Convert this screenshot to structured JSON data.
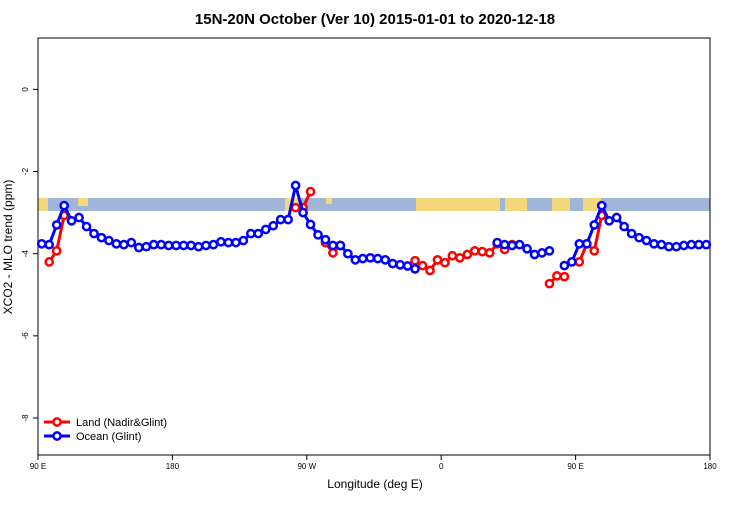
{
  "chart_data": {
    "type": "line",
    "title": "15N-20N October (Ver 10)   2015-01-01 to 2020-12-18",
    "xlabel": "Longitude (deg E)",
    "ylabel": "XCO2 - MLO trend (ppm)",
    "x": [
      92.5,
      97.5,
      102.5,
      107.5,
      112.5,
      117.5,
      122.5,
      127.5,
      132.5,
      137.5,
      142.5,
      147.5,
      152.5,
      157.5,
      162.5,
      167.5,
      172.5,
      177.5,
      182.5,
      187.5,
      192.5,
      197.5,
      202.5,
      207.5,
      212.5,
      217.5,
      222.5,
      227.5,
      232.5,
      237.5,
      242.5,
      247.5,
      252.5,
      257.5,
      262.5,
      267.5,
      272.5,
      277.5,
      282.5,
      287.5,
      292.5,
      297.5,
      302.5,
      307.5,
      312.5,
      317.5,
      322.5,
      327.5,
      332.5,
      337.5,
      342.5,
      347.5,
      352.5,
      357.5,
      362.5,
      367.5,
      372.5,
      377.5,
      382.5,
      387.5,
      392.5,
      397.5,
      402.5,
      407.5,
      412.5,
      417.5,
      422.5,
      427.5,
      432.5,
      437.5,
      442.5,
      447.5,
      452.5,
      457.5,
      462.5,
      467.5,
      472.5,
      477.5,
      482.5,
      487.5,
      492.5,
      497.5,
      502.5,
      507.5,
      512.5,
      517.5,
      522.5,
      527.5,
      532.5,
      537.5
    ],
    "series": [
      {
        "name": "Land (Nadir&Glint)",
        "color": "#ff0000",
        "values": [
          null,
          -4.2,
          -3.93,
          -3.07,
          null,
          null,
          null,
          null,
          null,
          null,
          null,
          null,
          null,
          null,
          null,
          null,
          null,
          null,
          null,
          null,
          null,
          null,
          null,
          null,
          null,
          null,
          null,
          null,
          null,
          null,
          null,
          null,
          null,
          null,
          -2.88,
          -2.88,
          -2.49,
          null,
          -3.73,
          -3.98,
          -3.8,
          null,
          null,
          null,
          null,
          null,
          null,
          null,
          null,
          null,
          -4.17,
          -4.29,
          -4.41,
          -4.15,
          -4.22,
          -4.05,
          -4.1,
          -4.02,
          -3.93,
          -3.95,
          -3.98,
          -3.76,
          -3.9,
          -3.78,
          null,
          null,
          null,
          null,
          -4.73,
          -4.54,
          -4.56,
          null,
          -4.2,
          -3.76,
          -3.93,
          -3.07,
          null,
          null,
          null,
          null,
          null,
          null,
          null,
          null,
          null,
          null,
          null,
          null,
          null,
          null
        ]
      },
      {
        "name": "Ocean (Glint)",
        "color": "#0000ff",
        "values": [
          -3.76,
          -3.78,
          -3.3,
          -2.83,
          -3.2,
          -3.12,
          -3.34,
          -3.51,
          -3.61,
          -3.68,
          -3.76,
          -3.78,
          -3.73,
          -3.85,
          -3.83,
          -3.78,
          -3.78,
          -3.8,
          -3.8,
          -3.8,
          -3.8,
          -3.83,
          -3.8,
          -3.78,
          -3.71,
          -3.73,
          -3.73,
          -3.68,
          -3.51,
          -3.51,
          -3.41,
          -3.32,
          -3.17,
          -3.17,
          -2.34,
          -3.0,
          -3.29,
          -3.54,
          -3.66,
          -3.8,
          -3.8,
          -4.0,
          -4.15,
          -4.12,
          -4.1,
          -4.12,
          -4.15,
          -4.24,
          -4.27,
          -4.3,
          -4.37,
          null,
          null,
          null,
          null,
          null,
          null,
          null,
          null,
          null,
          null,
          -3.73,
          -3.78,
          -3.8,
          -3.78,
          -3.88,
          -4.02,
          -3.98,
          -3.93,
          null,
          -4.29,
          -4.2,
          -3.76,
          -3.76,
          -3.3,
          -2.83,
          -3.2,
          -3.12,
          -3.34,
          -3.51,
          -3.61,
          -3.68,
          -3.76,
          -3.78,
          -3.83,
          -3.83,
          -3.8,
          -3.78,
          -3.78,
          -3.78
        ]
      }
    ],
    "xlim": [
      90,
      540
    ],
    "xticks": [
      {
        "value": 90,
        "label": "90 E"
      },
      180,
      {
        "value": 270,
        "label": "90 W"
      },
      {
        "value": 360,
        "label": "0"
      },
      {
        "value": 450,
        "label": "90 E"
      },
      {
        "value": 540,
        "label": "180"
      }
    ],
    "ylim": [
      -8.9,
      1.25
    ],
    "yticks": [
      0,
      -2,
      -4,
      -6,
      -8
    ],
    "legend": "bottom-left"
  }
}
